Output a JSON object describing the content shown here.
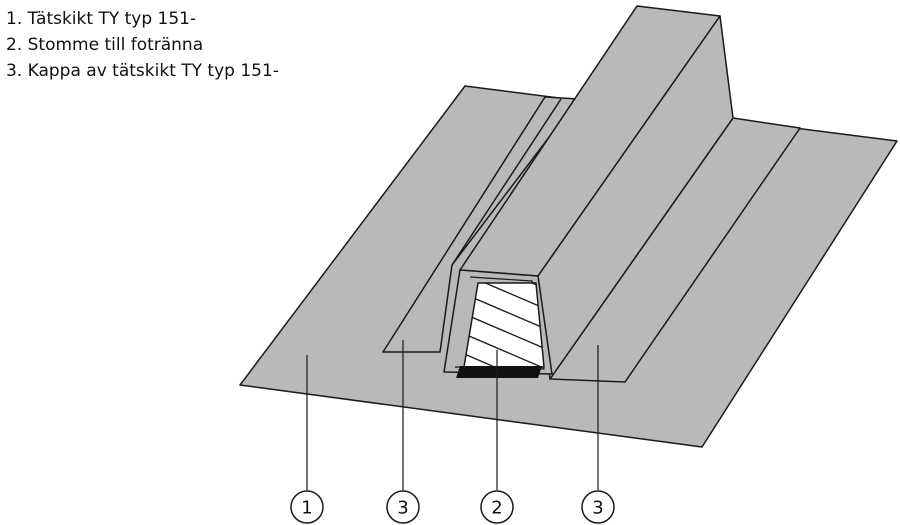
{
  "legend": [
    {
      "text": "1. Tätskikt TY typ 151-"
    },
    {
      "text": "2. Stomme till fotränna"
    },
    {
      "text": "3. Kappa av tätskikt TY typ 151-"
    }
  ],
  "callouts": [
    "1",
    "3",
    "2",
    "3"
  ],
  "colors": {
    "membrane": "#b9b9b9",
    "stroke": "#1a1a1a",
    "core_fill": "#ffffff",
    "base_strip": "#111111"
  }
}
